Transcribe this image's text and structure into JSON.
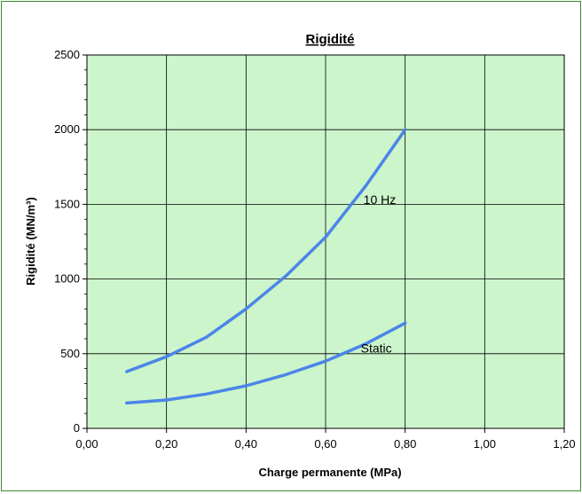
{
  "chart_data": {
    "type": "line",
    "title": "Rigidité",
    "xlabel": "Charge permanente (MPa)",
    "ylabel": "Rigidité (MN/m³)",
    "xlim": [
      0,
      1.2
    ],
    "ylim": [
      0,
      2500
    ],
    "x_ticks": [
      "0,00",
      "0,20",
      "0,40",
      "0,60",
      "0,80",
      "1,00",
      "1,20"
    ],
    "y_ticks": [
      "0",
      "500",
      "1000",
      "1500",
      "2000",
      "2500"
    ],
    "grid": true,
    "legend": "none",
    "plot_background": "#ccf5cc",
    "line_color": "#4a86e8",
    "series": [
      {
        "label": "10 Hz",
        "x": [
          0.1,
          0.2,
          0.3,
          0.4,
          0.5,
          0.6,
          0.7,
          0.8
        ],
        "y": [
          380,
          480,
          610,
          800,
          1020,
          1280,
          1620,
          2000
        ]
      },
      {
        "label": "Static",
        "x": [
          0.1,
          0.2,
          0.3,
          0.4,
          0.5,
          0.6,
          0.7,
          0.8
        ],
        "y": [
          170,
          190,
          230,
          285,
          360,
          450,
          565,
          705
        ]
      }
    ]
  }
}
